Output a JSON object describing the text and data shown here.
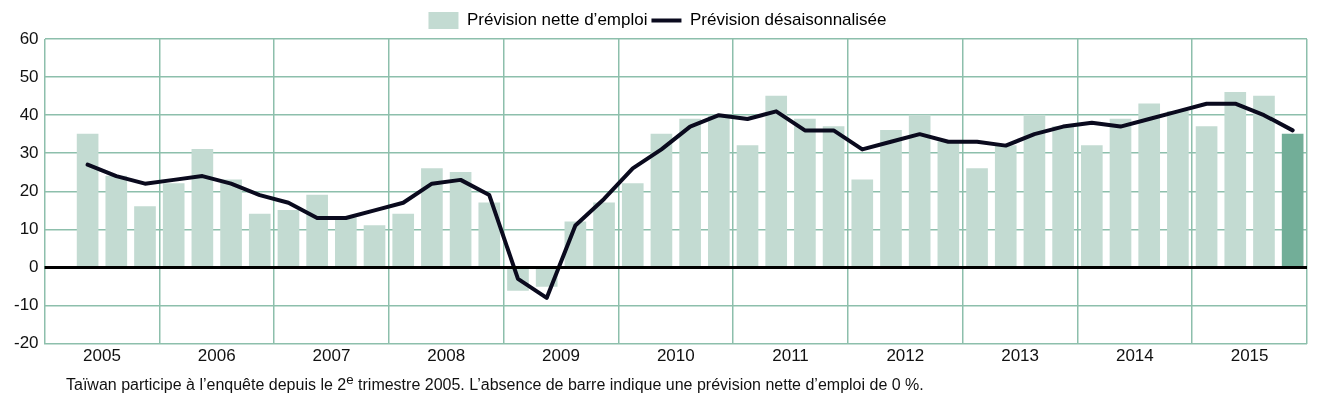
{
  "chart_data": {
    "type": "bar",
    "x": [
      2005.375,
      2005.625,
      2005.875,
      2006.125,
      2006.375,
      2006.625,
      2006.875,
      2007.125,
      2007.375,
      2007.625,
      2007.875,
      2008.125,
      2008.375,
      2008.625,
      2008.875,
      2009.125,
      2009.375,
      2009.625,
      2009.875,
      2010.125,
      2010.375,
      2010.625,
      2010.875,
      2011.125,
      2011.375,
      2011.625,
      2011.875,
      2012.125,
      2012.375,
      2012.625,
      2012.875,
      2013.125,
      2013.375,
      2013.625,
      2013.875,
      2014.125,
      2014.375,
      2014.625,
      2014.875,
      2015.125,
      2015.375,
      2015.625,
      2015.875
    ],
    "series": [
      {
        "name": "Prévision nette d’emploi",
        "color": "#c3dbd2",
        "values": [
          35,
          24,
          16,
          22,
          31,
          23,
          14,
          15,
          19,
          13,
          11,
          14,
          26,
          25,
          17,
          -6,
          -5,
          12,
          17,
          22,
          35,
          39,
          40,
          32,
          45,
          39,
          37,
          23,
          36,
          40,
          33,
          26,
          32,
          40,
          37,
          32,
          39,
          43,
          41,
          37,
          46,
          45,
          35
        ],
        "colors": [
          "#c3dbd2",
          "#c3dbd2",
          "#c3dbd2",
          "#c3dbd2",
          "#c3dbd2",
          "#c3dbd2",
          "#c3dbd2",
          "#c3dbd2",
          "#c3dbd2",
          "#c3dbd2",
          "#c3dbd2",
          "#c3dbd2",
          "#c3dbd2",
          "#c3dbd2",
          "#c3dbd2",
          "#c3dbd2",
          "#c3dbd2",
          "#c3dbd2",
          "#c3dbd2",
          "#c3dbd2",
          "#c3dbd2",
          "#c3dbd2",
          "#c3dbd2",
          "#c3dbd2",
          "#c3dbd2",
          "#c3dbd2",
          "#c3dbd2",
          "#c3dbd2",
          "#c3dbd2",
          "#c3dbd2",
          "#c3dbd2",
          "#c3dbd2",
          "#c3dbd2",
          "#c3dbd2",
          "#c3dbd2",
          "#c3dbd2",
          "#c3dbd2",
          "#c3dbd2",
          "#c3dbd2",
          "#c3dbd2",
          "#c3dbd2",
          "#c3dbd2",
          "#72ae98"
        ]
      },
      {
        "name": "Prévision désaisonnalisée",
        "type": "line",
        "color": "#0a0a1e",
        "values": [
          27,
          24,
          22,
          23,
          24,
          22,
          19,
          17,
          13,
          13,
          15,
          17,
          22,
          23,
          19,
          -3,
          -8,
          11,
          18,
          26,
          31,
          37,
          40,
          39,
          41,
          36,
          36,
          31,
          33,
          35,
          33,
          33,
          32,
          35,
          37,
          38,
          37,
          39,
          41,
          43,
          43,
          40,
          36
        ]
      }
    ],
    "xlim": [
      2005,
      2016
    ],
    "xticks": [
      {
        "value": 2005,
        "label": null
      },
      {
        "value": 2005.5,
        "label": "2005"
      },
      {
        "value": 2006,
        "label": null
      },
      {
        "value": 2006.5,
        "label": "2006"
      },
      {
        "value": 2007,
        "label": null
      },
      {
        "value": 2007.5,
        "label": "2007"
      },
      {
        "value": 2008,
        "label": null
      },
      {
        "value": 2008.5,
        "label": "2008"
      },
      {
        "value": 2009,
        "label": null
      },
      {
        "value": 2009.5,
        "label": "2009"
      },
      {
        "value": 2010,
        "label": null
      },
      {
        "value": 2010.5,
        "label": "2010"
      },
      {
        "value": 2011,
        "label": null
      },
      {
        "value": 2011.5,
        "label": "2011"
      },
      {
        "value": 2012,
        "label": null
      },
      {
        "value": 2012.5,
        "label": "2012"
      },
      {
        "value": 2013,
        "label": null
      },
      {
        "value": 2013.5,
        "label": "2013"
      },
      {
        "value": 2014,
        "label": null
      },
      {
        "value": 2014.5,
        "label": "2014"
      },
      {
        "value": 2015,
        "label": null
      },
      {
        "value": 2015.5,
        "label": "2015"
      },
      {
        "value": 2016,
        "label": null
      }
    ],
    "ylim": [
      -20,
      60
    ],
    "yticks": [
      -20,
      -10,
      0,
      10,
      20,
      30,
      40,
      50,
      60
    ],
    "grid": true,
    "legend": "top",
    "marker": "none",
    "line_style": "solid",
    "ref_lines": [
      {
        "axis": "y",
        "value": 0,
        "color": "#000000"
      }
    ],
    "annotations": [
      "Taïwan participe à l’enquête depuis le 2$^{e}$ trimestre 2005.   L’absence de barre indique une prévision nette d’emploi de 0 %."
    ]
  }
}
